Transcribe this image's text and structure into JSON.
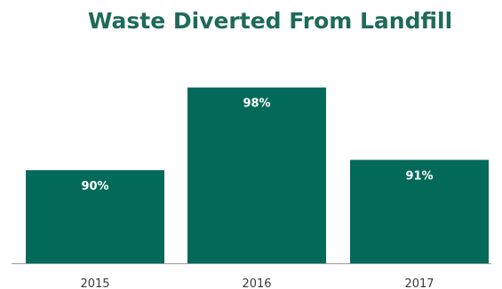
{
  "chart_data": {
    "type": "bar",
    "title": "Waste Diverted From Landfill",
    "categories": [
      "2015",
      "2016",
      "2017"
    ],
    "values": [
      90,
      98,
      91
    ],
    "data_labels": [
      "90%",
      "98%",
      "91%"
    ],
    "xlabel": "",
    "ylabel": "",
    "ylim": [
      81,
      99
    ],
    "grid": false,
    "legend": "none",
    "colors": {
      "bar": "#036a5a",
      "title": "#1f6a5a",
      "axis": "#9a9a9a",
      "tick_text": "#3a3a3a",
      "label_text": "#ffffff"
    }
  }
}
